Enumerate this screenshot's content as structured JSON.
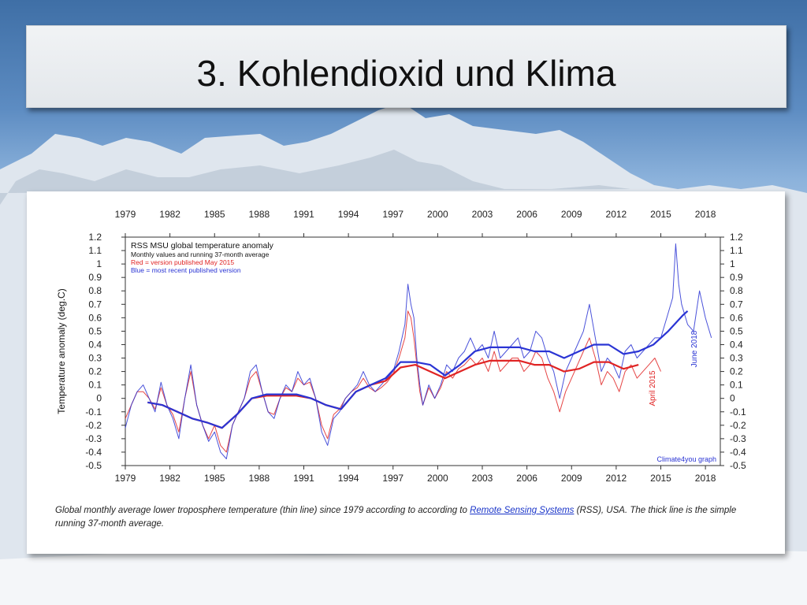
{
  "slide": {
    "title": "3. Kohlendioxid und Klima"
  },
  "chart_data": {
    "type": "line",
    "title": "RSS MSU global temperature anomaly",
    "legend_lines": [
      "Monthly values and running 37-month average",
      "Red = version published May 2015",
      "Blue = most recent published version"
    ],
    "ylabel": "Temperature anomaly (deg.C)",
    "xlim": [
      1979,
      2019
    ],
    "ylim": [
      -0.5,
      1.2
    ],
    "x_ticks": [
      1979,
      1982,
      1985,
      1988,
      1991,
      1994,
      1997,
      2000,
      2003,
      2006,
      2009,
      2012,
      2015,
      2018
    ],
    "y_ticks": [
      1.2,
      1.1,
      1,
      0.9,
      0.8,
      0.7,
      0.6,
      0.5,
      0.4,
      0.3,
      0.2,
      0.1,
      0,
      -0.1,
      -0.2,
      -0.3,
      -0.4,
      -0.5
    ],
    "grid": false,
    "annotations": {
      "red_version": "April 2015",
      "blue_version": "June 2018",
      "credit": "Climate4you graph"
    },
    "colors": {
      "red": "#e02424",
      "blue": "#2a34d4"
    },
    "series": [
      {
        "name": "Blue = most recent published version",
        "style": "thin",
        "color": "#2a34d4",
        "x": [
          1979.0,
          1979.4,
          1979.8,
          1980.2,
          1980.6,
          1981.0,
          1981.4,
          1981.8,
          1982.2,
          1982.6,
          1983.0,
          1983.4,
          1983.8,
          1984.2,
          1984.6,
          1985.0,
          1985.4,
          1985.8,
          1986.2,
          1986.6,
          1987.0,
          1987.4,
          1987.8,
          1988.2,
          1988.6,
          1989.0,
          1989.4,
          1989.8,
          1990.2,
          1990.6,
          1991.0,
          1991.4,
          1991.8,
          1992.2,
          1992.6,
          1993.0,
          1993.4,
          1993.8,
          1994.2,
          1994.6,
          1995.0,
          1995.4,
          1995.8,
          1996.2,
          1996.6,
          1997.0,
          1997.4,
          1997.8,
          1998.0,
          1998.2,
          1998.4,
          1998.6,
          1998.8,
          1999.0,
          1999.4,
          1999.8,
          2000.2,
          2000.6,
          2001.0,
          2001.4,
          2001.8,
          2002.2,
          2002.6,
          2003.0,
          2003.4,
          2003.8,
          2004.2,
          2004.6,
          2005.0,
          2005.4,
          2005.8,
          2006.2,
          2006.6,
          2007.0,
          2007.4,
          2007.8,
          2008.2,
          2008.6,
          2009.0,
          2009.4,
          2009.8,
          2010.2,
          2010.6,
          2011.0,
          2011.4,
          2011.8,
          2012.2,
          2012.6,
          2013.0,
          2013.4,
          2013.8,
          2014.2,
          2014.6,
          2015.0,
          2015.4,
          2015.8,
          2016.0,
          2016.2,
          2016.4,
          2016.8,
          2017.2,
          2017.6,
          2018.0,
          2018.4
        ],
        "values": [
          -0.22,
          -0.05,
          0.05,
          0.1,
          0.0,
          -0.1,
          0.12,
          -0.05,
          -0.15,
          -0.3,
          0.0,
          0.25,
          -0.05,
          -0.2,
          -0.32,
          -0.25,
          -0.4,
          -0.45,
          -0.2,
          -0.1,
          0.0,
          0.2,
          0.25,
          0.05,
          -0.1,
          -0.15,
          0.0,
          0.1,
          0.05,
          0.2,
          0.1,
          0.15,
          0.0,
          -0.25,
          -0.35,
          -0.15,
          -0.1,
          0.0,
          0.05,
          0.1,
          0.2,
          0.1,
          0.05,
          0.1,
          0.15,
          0.2,
          0.35,
          0.55,
          0.85,
          0.7,
          0.6,
          0.3,
          0.1,
          -0.05,
          0.1,
          0.0,
          0.1,
          0.25,
          0.2,
          0.3,
          0.35,
          0.45,
          0.35,
          0.4,
          0.3,
          0.5,
          0.3,
          0.35,
          0.4,
          0.45,
          0.3,
          0.35,
          0.5,
          0.45,
          0.3,
          0.2,
          0.0,
          0.2,
          0.3,
          0.4,
          0.5,
          0.7,
          0.45,
          0.2,
          0.3,
          0.25,
          0.15,
          0.35,
          0.4,
          0.3,
          0.35,
          0.4,
          0.45,
          0.45,
          0.6,
          0.75,
          1.15,
          0.85,
          0.7,
          0.55,
          0.5,
          0.8,
          0.6,
          0.45
        ]
      },
      {
        "name": "Red = version published May 2015",
        "style": "thin",
        "color": "#e02424",
        "x": [
          1979.0,
          1979.4,
          1979.8,
          1980.2,
          1980.6,
          1981.0,
          1981.4,
          1981.8,
          1982.2,
          1982.6,
          1983.0,
          1983.4,
          1983.8,
          1984.2,
          1984.6,
          1985.0,
          1985.4,
          1985.8,
          1986.2,
          1986.6,
          1987.0,
          1987.4,
          1987.8,
          1988.2,
          1988.6,
          1989.0,
          1989.4,
          1989.8,
          1990.2,
          1990.6,
          1991.0,
          1991.4,
          1991.8,
          1992.2,
          1992.6,
          1993.0,
          1993.4,
          1993.8,
          1994.2,
          1994.6,
          1995.0,
          1995.4,
          1995.8,
          1996.2,
          1996.6,
          1997.0,
          1997.4,
          1997.8,
          1998.0,
          1998.2,
          1998.4,
          1998.6,
          1998.8,
          1999.0,
          1999.4,
          1999.8,
          2000.2,
          2000.6,
          2001.0,
          2001.4,
          2001.8,
          2002.2,
          2002.6,
          2003.0,
          2003.4,
          2003.8,
          2004.2,
          2004.6,
          2005.0,
          2005.4,
          2005.8,
          2006.2,
          2006.6,
          2007.0,
          2007.4,
          2007.8,
          2008.2,
          2008.6,
          2009.0,
          2009.4,
          2009.8,
          2010.2,
          2010.6,
          2011.0,
          2011.4,
          2011.8,
          2012.2,
          2012.6,
          2013.0,
          2013.4,
          2013.8,
          2014.2,
          2014.6,
          2015.0
        ],
        "values": [
          -0.15,
          -0.05,
          0.05,
          0.05,
          0.0,
          -0.08,
          0.08,
          -0.05,
          -0.12,
          -0.25,
          0.0,
          0.2,
          -0.05,
          -0.2,
          -0.3,
          -0.2,
          -0.35,
          -0.4,
          -0.2,
          -0.1,
          0.0,
          0.15,
          0.2,
          0.05,
          -0.1,
          -0.12,
          0.0,
          0.08,
          0.05,
          0.15,
          0.1,
          0.12,
          0.0,
          -0.2,
          -0.3,
          -0.12,
          -0.08,
          0.0,
          0.05,
          0.08,
          0.15,
          0.08,
          0.05,
          0.08,
          0.12,
          0.18,
          0.3,
          0.45,
          0.65,
          0.6,
          0.45,
          0.25,
          0.05,
          -0.05,
          0.08,
          0.0,
          0.08,
          0.2,
          0.15,
          0.22,
          0.25,
          0.3,
          0.25,
          0.3,
          0.2,
          0.35,
          0.2,
          0.25,
          0.3,
          0.3,
          0.2,
          0.25,
          0.35,
          0.3,
          0.15,
          0.05,
          -0.1,
          0.05,
          0.15,
          0.25,
          0.35,
          0.45,
          0.3,
          0.1,
          0.2,
          0.15,
          0.05,
          0.2,
          0.25,
          0.15,
          0.2,
          0.25,
          0.3,
          0.2
        ]
      },
      {
        "name": "Blue running 37-month average",
        "style": "thick",
        "color": "#2a34d4",
        "x": [
          1980.5,
          1981.5,
          1982.5,
          1983.5,
          1984.5,
          1985.5,
          1986.5,
          1987.5,
          1988.5,
          1989.5,
          1990.5,
          1991.5,
          1992.5,
          1993.5,
          1994.5,
          1995.5,
          1996.5,
          1997.5,
          1998.5,
          1999.5,
          2000.5,
          2001.5,
          2002.5,
          2003.5,
          2004.5,
          2005.5,
          2006.5,
          2007.5,
          2008.5,
          2009.5,
          2010.5,
          2011.5,
          2012.5,
          2013.5,
          2014.5,
          2015.5,
          2016.5,
          2016.8
        ],
        "values": [
          -0.03,
          -0.05,
          -0.1,
          -0.15,
          -0.18,
          -0.22,
          -0.12,
          0.0,
          0.03,
          0.03,
          0.03,
          0.0,
          -0.05,
          -0.08,
          0.05,
          0.1,
          0.15,
          0.27,
          0.27,
          0.25,
          0.17,
          0.25,
          0.35,
          0.38,
          0.38,
          0.38,
          0.35,
          0.35,
          0.3,
          0.35,
          0.4,
          0.4,
          0.33,
          0.35,
          0.4,
          0.5,
          0.62,
          0.65
        ]
      },
      {
        "name": "Red running 37-month average",
        "style": "thick",
        "color": "#e02424",
        "x": [
          1980.5,
          1981.5,
          1982.5,
          1983.5,
          1984.5,
          1985.5,
          1986.5,
          1987.5,
          1988.5,
          1989.5,
          1990.5,
          1991.5,
          1992.5,
          1993.5,
          1994.5,
          1995.5,
          1996.5,
          1997.5,
          1998.5,
          1999.5,
          2000.5,
          2001.5,
          2002.5,
          2003.5,
          2004.5,
          2005.5,
          2006.5,
          2007.5,
          2008.5,
          2009.5,
          2010.5,
          2011.5,
          2012.5,
          2013.5
        ],
        "values": [
          -0.03,
          -0.05,
          -0.1,
          -0.15,
          -0.18,
          -0.22,
          -0.12,
          0.0,
          0.02,
          0.02,
          0.02,
          0.0,
          -0.05,
          -0.08,
          0.05,
          0.1,
          0.13,
          0.23,
          0.25,
          0.2,
          0.15,
          0.2,
          0.25,
          0.28,
          0.28,
          0.28,
          0.25,
          0.25,
          0.2,
          0.22,
          0.27,
          0.27,
          0.22,
          0.25
        ]
      }
    ]
  },
  "caption": {
    "text_before": "Global monthly average lower troposphere temperature (thin line) since 1979 according to according to ",
    "link": "Remote Sensing Systems",
    "text_after": " (RSS), USA. The thick line is the simple running 37-month average."
  }
}
